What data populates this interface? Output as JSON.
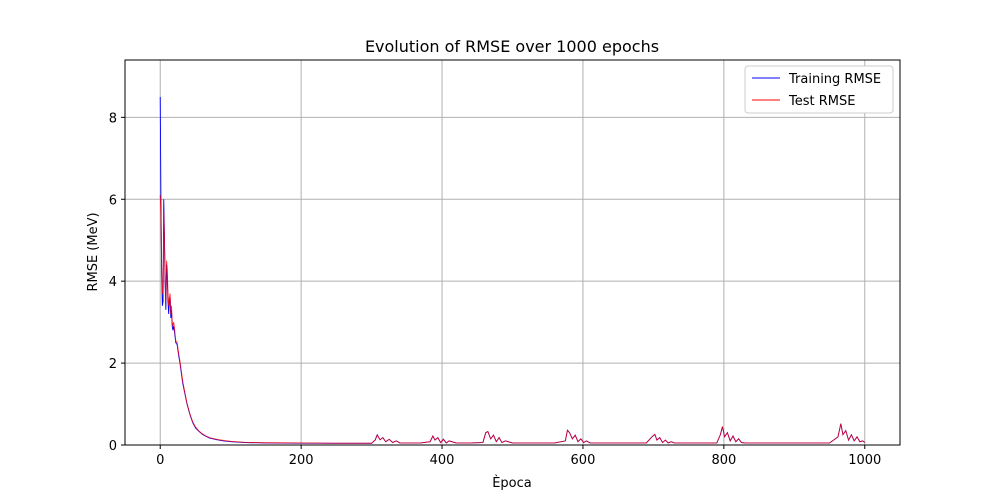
{
  "chart_data": {
    "type": "line",
    "title": "Evolution of RMSE over 1000 epochs",
    "xlabel": "Època",
    "ylabel": "RMSE (MeV)",
    "xlim": [
      -50,
      1050
    ],
    "ylim": [
      0,
      9.4
    ],
    "xticks": [
      0,
      200,
      400,
      600,
      800,
      1000
    ],
    "yticks": [
      0,
      2,
      4,
      6,
      8
    ],
    "grid": true,
    "legend_position": "upper right",
    "series": [
      {
        "name": "Training RMSE",
        "color": "#0000ff",
        "x": [
          0,
          1,
          2,
          3,
          4,
          5,
          6,
          7,
          8,
          9,
          10,
          11,
          12,
          13,
          14,
          15,
          16,
          17,
          18,
          19,
          20,
          22,
          24,
          26,
          28,
          30,
          32,
          35,
          38,
          42,
          46,
          50,
          55,
          60,
          65,
          70,
          80,
          90,
          100,
          120,
          150,
          200,
          250,
          300,
          305,
          308,
          312,
          316,
          320,
          325,
          330,
          335,
          340,
          350,
          370,
          383,
          387,
          390,
          394,
          398,
          402,
          406,
          410,
          420,
          440,
          458,
          462,
          465,
          469,
          473,
          477,
          481,
          485,
          490,
          500,
          520,
          560,
          575,
          578,
          581,
          585,
          589,
          593,
          597,
          601,
          605,
          610,
          620,
          650,
          690,
          698,
          702,
          705,
          709,
          713,
          717,
          721,
          725,
          730,
          740,
          760,
          790,
          795,
          798,
          801,
          805,
          809,
          813,
          817,
          821,
          825,
          830,
          840,
          860,
          900,
          950,
          962,
          966,
          969,
          973,
          977,
          981,
          985,
          989,
          993,
          997,
          1000
        ],
        "y": [
          8.5,
          6.0,
          4.2,
          3.4,
          3.5,
          6.0,
          5.1,
          3.9,
          3.3,
          4.4,
          4.1,
          3.5,
          3.2,
          3.5,
          3.6,
          3.1,
          3.3,
          2.9,
          2.8,
          2.9,
          2.8,
          2.5,
          2.45,
          2.2,
          2.0,
          1.75,
          1.5,
          1.25,
          1.0,
          0.75,
          0.55,
          0.42,
          0.33,
          0.26,
          0.21,
          0.17,
          0.13,
          0.1,
          0.08,
          0.06,
          0.05,
          0.045,
          0.04,
          0.04,
          0.12,
          0.25,
          0.13,
          0.18,
          0.08,
          0.14,
          0.06,
          0.1,
          0.05,
          0.05,
          0.05,
          0.08,
          0.22,
          0.12,
          0.18,
          0.06,
          0.14,
          0.05,
          0.1,
          0.05,
          0.05,
          0.06,
          0.3,
          0.33,
          0.15,
          0.24,
          0.08,
          0.18,
          0.06,
          0.1,
          0.05,
          0.05,
          0.05,
          0.1,
          0.36,
          0.3,
          0.15,
          0.24,
          0.08,
          0.15,
          0.06,
          0.1,
          0.05,
          0.05,
          0.05,
          0.05,
          0.2,
          0.26,
          0.12,
          0.18,
          0.06,
          0.12,
          0.05,
          0.08,
          0.05,
          0.05,
          0.05,
          0.05,
          0.25,
          0.45,
          0.2,
          0.3,
          0.1,
          0.22,
          0.08,
          0.15,
          0.06,
          0.05,
          0.05,
          0.05,
          0.05,
          0.05,
          0.2,
          0.52,
          0.25,
          0.35,
          0.12,
          0.25,
          0.1,
          0.2,
          0.08,
          0.1,
          0.06
        ]
      },
      {
        "name": "Test RMSE",
        "color": "#ff0000",
        "x": [
          0,
          1,
          2,
          3,
          4,
          5,
          6,
          7,
          8,
          9,
          10,
          11,
          12,
          13,
          14,
          15,
          16,
          17,
          18,
          19,
          20,
          22,
          24,
          26,
          28,
          30,
          32,
          35,
          38,
          42,
          46,
          50,
          55,
          60,
          65,
          70,
          80,
          90,
          100,
          120,
          150,
          200,
          250,
          300,
          305,
          308,
          312,
          316,
          320,
          325,
          330,
          335,
          340,
          350,
          370,
          383,
          387,
          390,
          394,
          398,
          402,
          406,
          410,
          420,
          440,
          458,
          462,
          465,
          469,
          473,
          477,
          481,
          485,
          490,
          500,
          520,
          560,
          575,
          578,
          581,
          585,
          589,
          593,
          597,
          601,
          605,
          610,
          620,
          650,
          690,
          698,
          702,
          705,
          709,
          713,
          717,
          721,
          725,
          730,
          740,
          760,
          790,
          795,
          798,
          801,
          805,
          809,
          813,
          817,
          821,
          825,
          830,
          840,
          860,
          900,
          950,
          962,
          966,
          969,
          973,
          977,
          981,
          985,
          989,
          993,
          997,
          1000
        ],
        "y": [
          6.1,
          5.6,
          4.4,
          3.7,
          3.7,
          5.7,
          5.0,
          4.0,
          3.5,
          4.5,
          4.3,
          3.7,
          3.4,
          3.6,
          3.7,
          3.2,
          3.4,
          3.0,
          2.9,
          3.0,
          2.9,
          2.55,
          2.5,
          2.25,
          2.05,
          1.8,
          1.55,
          1.28,
          1.02,
          0.77,
          0.57,
          0.44,
          0.34,
          0.27,
          0.22,
          0.18,
          0.14,
          0.11,
          0.09,
          0.065,
          0.055,
          0.05,
          0.045,
          0.045,
          0.12,
          0.24,
          0.13,
          0.18,
          0.08,
          0.14,
          0.06,
          0.1,
          0.05,
          0.05,
          0.05,
          0.08,
          0.22,
          0.12,
          0.18,
          0.06,
          0.14,
          0.05,
          0.1,
          0.05,
          0.05,
          0.06,
          0.3,
          0.33,
          0.15,
          0.24,
          0.08,
          0.18,
          0.06,
          0.1,
          0.05,
          0.05,
          0.05,
          0.1,
          0.36,
          0.3,
          0.15,
          0.24,
          0.08,
          0.15,
          0.06,
          0.1,
          0.05,
          0.05,
          0.05,
          0.05,
          0.2,
          0.26,
          0.12,
          0.18,
          0.06,
          0.12,
          0.05,
          0.08,
          0.05,
          0.05,
          0.05,
          0.05,
          0.25,
          0.45,
          0.2,
          0.3,
          0.1,
          0.22,
          0.08,
          0.15,
          0.06,
          0.05,
          0.05,
          0.05,
          0.05,
          0.05,
          0.2,
          0.52,
          0.25,
          0.35,
          0.12,
          0.25,
          0.1,
          0.2,
          0.08,
          0.1,
          0.06
        ]
      }
    ]
  }
}
